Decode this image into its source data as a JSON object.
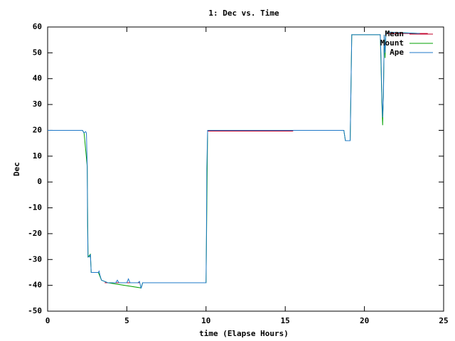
{
  "chart_data": {
    "type": "line",
    "title": "1: Dec vs. Time",
    "x_label": "time (Elapse Hours)",
    "y_label": "Dec",
    "xlim": [
      0,
      25
    ],
    "xticks": [
      0,
      5,
      10,
      15,
      20,
      25
    ],
    "ylim": [
      -50,
      60
    ],
    "yticks": [
      -50,
      -40,
      -30,
      -20,
      -10,
      0,
      10,
      20,
      30,
      40,
      50,
      60
    ],
    "legend": "top-right",
    "series": [
      {
        "name": "Mean",
        "color": "#c0002a",
        "x": [
          0,
          2.2,
          3.6,
          3.6,
          5.8,
          10.1,
          10.1,
          15.5,
          21.4,
          21.4,
          24
        ],
        "values": [
          20,
          20,
          null,
          -39,
          -39,
          null,
          19.7,
          19.7,
          null,
          57.5,
          57.5
        ]
      },
      {
        "name": "Mount",
        "color": "#00a000",
        "x": [
          0,
          2.2,
          2.3,
          2.5,
          2.55,
          2.7,
          2.75,
          3.2,
          3.4,
          3.8,
          5.9,
          6.0,
          10.0,
          10.1,
          18.7,
          18.8,
          19.1,
          19.2,
          21.0,
          21.05,
          21.1,
          21.15,
          21.2,
          21.25,
          21.3,
          21.35,
          21.5,
          23.5
        ],
        "values": [
          20,
          20,
          19,
          6,
          -29,
          -28,
          -35,
          -35,
          -38,
          -39,
          -41,
          -39,
          -39,
          20,
          20,
          16,
          16,
          57,
          57,
          45,
          31,
          22,
          35,
          57,
          48,
          57,
          58,
          57.5
        ]
      },
      {
        "name": "Ape",
        "color": "#1f78c8",
        "x": [
          0,
          2.2,
          2.3,
          2.4,
          2.45,
          2.5,
          2.52,
          2.55,
          2.65,
          2.7,
          2.75,
          3.2,
          3.25,
          3.3,
          3.4,
          3.6,
          3.8,
          4.3,
          4.4,
          4.5,
          5.0,
          5.1,
          5.2,
          5.7,
          5.8,
          5.9,
          6.0,
          10.0,
          10.02,
          10.05,
          10.1,
          18.7,
          18.8,
          19.1,
          19.15,
          19.2,
          21.0,
          21.05,
          21.1,
          21.15,
          21.2,
          21.25,
          21.3,
          21.35,
          21.5,
          23.5
        ],
        "values": [
          20,
          20,
          19,
          19.5,
          19,
          6,
          -17,
          -29,
          -29,
          -28,
          -35,
          -35,
          -34.5,
          -36,
          -38,
          -38.5,
          -39,
          -39,
          -38,
          -39,
          -39,
          -37.5,
          -39,
          -39,
          -38.5,
          -41.2,
          -39,
          -39,
          -25,
          5,
          20,
          20,
          16,
          16,
          36,
          57,
          57,
          48,
          33,
          25,
          33,
          57,
          50,
          57,
          58,
          57.5
        ]
      }
    ]
  }
}
